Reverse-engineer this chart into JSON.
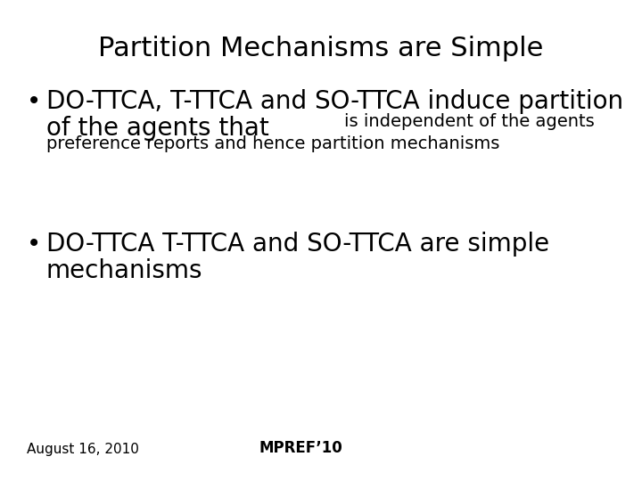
{
  "title": "Partition Mechanisms are Simple",
  "title_fontsize": 22,
  "background_color": "#ffffff",
  "text_color": "#000000",
  "bullet1_line1": "DO-TTCA, T-TTCA and SO-TTCA induce partition",
  "bullet1_line2_large": "of the agents that ",
  "bullet1_line2_small": "is independent of the agents",
  "bullet1_line3_small": "preference reports and hence partition mechanisms",
  "bullet1_large_fontsize": 20,
  "bullet1_small_fontsize": 14,
  "bullet2_line1": "DO-TTCA T-TTCA and SO-TTCA are simple",
  "bullet2_line2": "mechanisms",
  "bullet2_fontsize": 20,
  "footer_left": "August 16, 2010",
  "footer_right": "MPREF’10",
  "footer_fontsize": 11,
  "font_family": "DejaVu Sans"
}
